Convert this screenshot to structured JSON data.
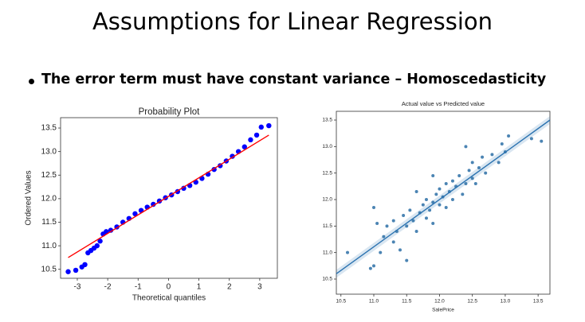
{
  "slide": {
    "title": "Assumptions for Linear Regression",
    "bullet": "The error term must have constant variance – Homoscedasticity"
  },
  "chart_data": [
    {
      "type": "scatter",
      "title": "Probability Plot",
      "xlabel": "Theoretical quantiles",
      "ylabel": "Ordered Values",
      "x": [
        -3.3,
        -3.05,
        -2.85,
        -2.75,
        -2.65,
        -2.55,
        -2.45,
        -2.35,
        -2.25,
        -2.15,
        -2.05,
        -1.9,
        -1.7,
        -1.5,
        -1.3,
        -1.1,
        -0.9,
        -0.7,
        -0.5,
        -0.3,
        -0.1,
        0.1,
        0.3,
        0.5,
        0.7,
        0.9,
        1.1,
        1.3,
        1.5,
        1.7,
        1.9,
        2.1,
        2.3,
        2.5,
        2.7,
        2.9,
        3.05,
        3.3
      ],
      "values": [
        10.45,
        10.48,
        10.55,
        10.6,
        10.85,
        10.9,
        10.95,
        11.0,
        11.1,
        11.25,
        11.3,
        11.33,
        11.4,
        11.5,
        11.58,
        11.68,
        11.75,
        11.82,
        11.88,
        11.95,
        12.02,
        12.08,
        12.15,
        12.22,
        12.28,
        12.35,
        12.43,
        12.52,
        12.62,
        12.7,
        12.8,
        12.9,
        13.0,
        13.1,
        13.25,
        13.35,
        13.52,
        13.55
      ],
      "color": "#0000ff",
      "fit": {
        "x": [
          -3.3,
          3.3
        ],
        "values": [
          10.75,
          13.35
        ],
        "color": "#ff0000"
      },
      "xlim": [
        -3.55,
        3.58
      ],
      "ylim": [
        10.31,
        13.72
      ],
      "xticks": [
        -3,
        -2,
        -1,
        0,
        1,
        2,
        3
      ],
      "yticks": [
        10.5,
        {
          "value": 11,
          "label": "11.0"
        },
        11.5,
        {
          "value": 12,
          "label": "12.0"
        },
        12.5,
        {
          "value": 13,
          "label": "13.0"
        },
        13.5
      ]
    },
    {
      "type": "scatter",
      "title": "Actual value vs Predicted value",
      "xlabel": "SalePrice",
      "x": [
        10.6,
        10.95,
        11.0,
        11.05,
        11.0,
        11.1,
        11.15,
        11.2,
        11.3,
        11.3,
        11.35,
        11.4,
        11.45,
        11.5,
        11.5,
        11.55,
        11.6,
        11.65,
        11.7,
        11.75,
        11.8,
        11.8,
        11.85,
        11.9,
        11.9,
        11.95,
        12.0,
        12.0,
        12.05,
        12.1,
        12.1,
        12.15,
        12.2,
        12.2,
        12.25,
        12.3,
        12.35,
        12.4,
        12.45,
        12.5,
        12.5,
        12.55,
        12.6,
        12.65,
        12.7,
        12.8,
        12.9,
        12.95,
        13.0,
        13.05,
        13.4,
        13.55,
        12.4,
        11.9,
        11.65
      ],
      "values": [
        11.0,
        10.7,
        10.75,
        11.55,
        11.85,
        11.0,
        11.3,
        11.5,
        11.2,
        11.6,
        11.4,
        11.05,
        11.7,
        10.85,
        11.5,
        11.8,
        11.6,
        11.4,
        11.75,
        11.9,
        11.65,
        12.0,
        11.8,
        11.95,
        11.55,
        12.1,
        11.9,
        12.2,
        12.05,
        11.85,
        12.3,
        12.15,
        12.0,
        12.35,
        12.25,
        12.45,
        12.1,
        12.3,
        12.55,
        12.4,
        12.7,
        12.3,
        12.6,
        12.8,
        12.5,
        12.85,
        12.7,
        13.05,
        12.9,
        13.2,
        13.15,
        13.1,
        13.0,
        12.45,
        12.15
      ],
      "color": "#2b6ea6",
      "fit": {
        "x": [
          10.43,
          13.68
        ],
        "values": [
          10.6,
          13.5
        ],
        "color": "#2a72b0"
      },
      "xlim": [
        10.43,
        13.68
      ],
      "ylim": [
        10.215,
        13.665
      ],
      "xticks": [
        10.5,
        {
          "value": 11,
          "label": "11.0"
        },
        11.5,
        {
          "value": 12,
          "label": "12.0"
        },
        12.5,
        {
          "value": 13,
          "label": "13.0"
        },
        13.5
      ],
      "yticks": [
        10.5,
        {
          "value": 11,
          "label": "11.0"
        },
        11.5,
        {
          "value": 12,
          "label": "12.0"
        },
        12.5,
        {
          "value": 13,
          "label": "13.0"
        },
        13.5
      ]
    }
  ]
}
